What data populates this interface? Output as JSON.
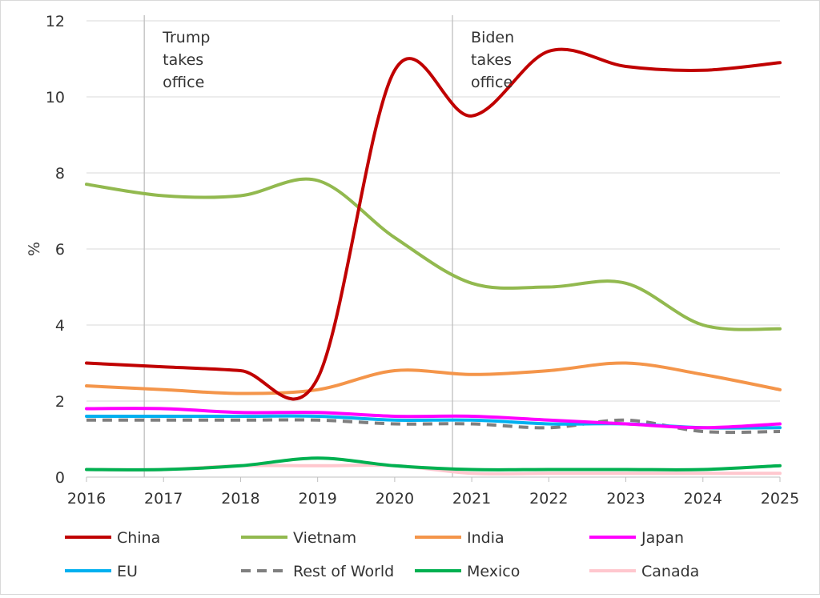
{
  "chart_data": {
    "type": "line",
    "title": "",
    "xlabel": "",
    "ylabel": "%",
    "ylim": [
      0,
      12
    ],
    "yticks": [
      "0",
      "2",
      "4",
      "6",
      "8",
      "10",
      "12"
    ],
    "xticks": [
      "2016",
      "2017",
      "2018",
      "2019",
      "2020",
      "2021",
      "2022",
      "2023",
      "2024",
      "2025"
    ],
    "grid": "horizontal",
    "legend_position": "bottom",
    "x": [
      2016,
      2017,
      2018,
      2019,
      2020,
      2021,
      2022,
      2023,
      2024,
      2025
    ],
    "annotations": [
      {
        "x": 2016.75,
        "lines": [
          "Trump",
          "takes",
          "office"
        ]
      },
      {
        "x": 2020.75,
        "lines": [
          "Biden",
          "takes",
          "office"
        ]
      }
    ],
    "series": [
      {
        "name": "China",
        "color": "#c00000",
        "dash": false,
        "values": [
          3.0,
          2.9,
          2.8,
          2.6,
          10.7,
          9.5,
          11.2,
          10.8,
          10.7,
          10.9
        ]
      },
      {
        "name": "Vietnam",
        "color": "#92b94f",
        "dash": false,
        "values": [
          7.7,
          7.4,
          7.4,
          7.8,
          6.3,
          5.1,
          5.0,
          5.1,
          4.0,
          3.9
        ]
      },
      {
        "name": "India",
        "color": "#f4954a",
        "dash": false,
        "values": [
          2.4,
          2.3,
          2.2,
          2.3,
          2.8,
          2.7,
          2.8,
          3.0,
          2.7,
          2.3
        ]
      },
      {
        "name": "Japan",
        "color": "#ff00ff",
        "dash": false,
        "values": [
          1.8,
          1.8,
          1.7,
          1.7,
          1.6,
          1.6,
          1.5,
          1.4,
          1.3,
          1.4
        ]
      },
      {
        "name": "EU",
        "color": "#00b0f0",
        "dash": false,
        "values": [
          1.6,
          1.6,
          1.6,
          1.6,
          1.5,
          1.5,
          1.4,
          1.4,
          1.3,
          1.3
        ]
      },
      {
        "name": "Rest of World",
        "color": "#7f7f7f",
        "dash": true,
        "values": [
          1.5,
          1.5,
          1.5,
          1.5,
          1.4,
          1.4,
          1.3,
          1.5,
          1.2,
          1.2
        ]
      },
      {
        "name": "Mexico",
        "color": "#00b050",
        "dash": false,
        "values": [
          0.2,
          0.2,
          0.3,
          0.5,
          0.3,
          0.2,
          0.2,
          0.2,
          0.2,
          0.3
        ]
      },
      {
        "name": "Canada",
        "color": "#ffc7ce",
        "dash": false,
        "values": [
          0.2,
          0.2,
          0.3,
          0.3,
          0.3,
          0.1,
          0.1,
          0.1,
          0.1,
          0.1
        ]
      }
    ]
  }
}
